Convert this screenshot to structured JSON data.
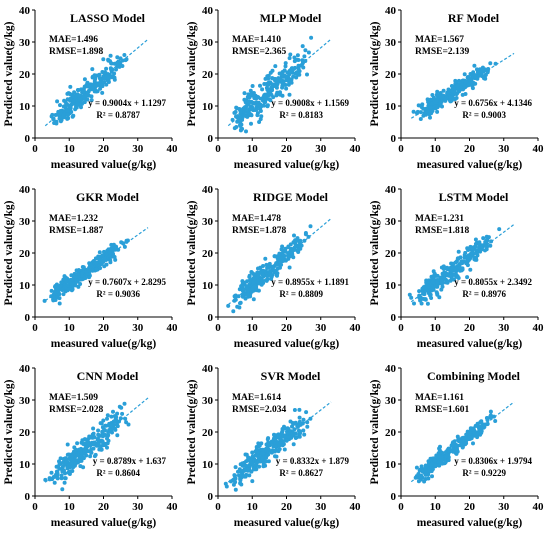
{
  "chart_data": [
    {
      "type": "scatter",
      "title": "LASSO Model",
      "xlabel": "measured value(g/kg)",
      "ylabel": "Predicted value(g/kg)",
      "xlim": [
        0,
        40
      ],
      "ylim": [
        0,
        40
      ],
      "xticks": [
        "0",
        "10",
        "20",
        "30",
        "40"
      ],
      "yticks": [
        "0",
        "10",
        "20",
        "30",
        "40"
      ],
      "mae": "MAE=1.496",
      "rmse": "RMSE=1.898",
      "equation": "y = 0.9004x + 1.1297",
      "r2": "R² = 0.8787",
      "slope": 0.9004,
      "intercept": 1.1297,
      "noise": 1.9,
      "x_range": [
        2,
        32
      ],
      "seed": 11,
      "n_points": 260,
      "point_color": "#2a9fd8"
    },
    {
      "type": "scatter",
      "title": "MLP Model",
      "xlabel": "measured value(g/kg)",
      "ylabel": "Predicted value(g/kg)",
      "xlim": [
        0,
        40
      ],
      "ylim": [
        0,
        40
      ],
      "xticks": [
        "0",
        "10",
        "20",
        "30",
        "40"
      ],
      "yticks": [
        "0",
        "10",
        "20",
        "30",
        "40"
      ],
      "mae": "MAE=1.410",
      "rmse": "RMSE=2.365",
      "equation": "y = 0.9008x + 1.1569",
      "r2": "R² = 0.8183",
      "slope": 0.9008,
      "intercept": 1.1569,
      "noise": 2.4,
      "x_range": [
        2,
        32
      ],
      "seed": 23,
      "n_points": 260,
      "point_color": "#2a9fd8"
    },
    {
      "type": "scatter",
      "title": "RF Model",
      "xlabel": "measured value(g/kg)",
      "ylabel": "Predicted value(g/kg)",
      "xlim": [
        0,
        40
      ],
      "ylim": [
        0,
        40
      ],
      "xticks": [
        "0",
        "10",
        "20",
        "30",
        "40"
      ],
      "yticks": [
        "0",
        "10",
        "20",
        "30",
        "40"
      ],
      "mae": "MAE=1.567",
      "rmse": "RMSE=2.139",
      "equation": "y = 0.6756x + 4.1346",
      "r2": "R² = 0.9003",
      "slope": 0.6756,
      "intercept": 4.1346,
      "noise": 1.3,
      "x_range": [
        2,
        32
      ],
      "seed": 37,
      "n_points": 260,
      "point_color": "#2a9fd8"
    },
    {
      "type": "scatter",
      "title": "GKR Model",
      "xlabel": "measured value(g/kg)",
      "ylabel": "Predicted value(g/kg)",
      "xlim": [
        0,
        40
      ],
      "ylim": [
        0,
        40
      ],
      "xticks": [
        "0",
        "10",
        "20",
        "30",
        "40"
      ],
      "yticks": [
        "0",
        "10",
        "20",
        "30",
        "40"
      ],
      "mae": "MAE=1.232",
      "rmse": "RMSE=1.887",
      "equation": "y = 0.7607x + 2.8295",
      "r2": "R² = 0.9036",
      "slope": 0.7607,
      "intercept": 2.8295,
      "noise": 1.4,
      "x_range": [
        2,
        32
      ],
      "seed": 41,
      "n_points": 260,
      "point_color": "#2a9fd8"
    },
    {
      "type": "scatter",
      "title": "RIDGE Model",
      "xlabel": "measured value(g/kg)",
      "ylabel": "Predicted value(g/kg)",
      "xlim": [
        0,
        40
      ],
      "ylim": [
        0,
        40
      ],
      "xticks": [
        "0",
        "10",
        "20",
        "30",
        "40"
      ],
      "yticks": [
        "0",
        "10",
        "20",
        "30",
        "40"
      ],
      "mae": "MAE=1.478",
      "rmse": "RMSE=1.878",
      "equation": "y = 0.8955x + 1.1891",
      "r2": "R² = 0.8809",
      "slope": 0.8955,
      "intercept": 1.1891,
      "noise": 1.9,
      "x_range": [
        2,
        32
      ],
      "seed": 53,
      "n_points": 260,
      "point_color": "#2a9fd8"
    },
    {
      "type": "scatter",
      "title": "LSTM Model",
      "xlabel": "measured value(g/kg)",
      "ylabel": "Predicted value(g/kg)",
      "xlim": [
        0,
        40
      ],
      "ylim": [
        0,
        40
      ],
      "xticks": [
        "0",
        "10",
        "20",
        "30",
        "40"
      ],
      "yticks": [
        "0",
        "10",
        "20",
        "30",
        "40"
      ],
      "mae": "MAE=1.231",
      "rmse": "RMSE=1.818",
      "equation": "y = 0.8055x + 2.3492",
      "r2": "R² = 0.8976",
      "slope": 0.8055,
      "intercept": 2.3492,
      "noise": 1.6,
      "x_range": [
        2,
        32
      ],
      "seed": 67,
      "n_points": 260,
      "point_color": "#2a9fd8"
    },
    {
      "type": "scatter",
      "title": "CNN Model",
      "xlabel": "measured value(g/kg)",
      "ylabel": "Predicted value(g/kg)",
      "xlim": [
        0,
        40
      ],
      "ylim": [
        0,
        40
      ],
      "xticks": [
        "0",
        "10",
        "20",
        "30",
        "40"
      ],
      "yticks": [
        "0",
        "10",
        "20",
        "30",
        "40"
      ],
      "mae": "MAE=1.509",
      "rmse": "RMSE=2.028",
      "equation": "y = 0.8789x + 1.637",
      "r2": "R² = 0.8604",
      "slope": 0.8789,
      "intercept": 1.637,
      "noise": 2.1,
      "x_range": [
        2,
        32
      ],
      "seed": 79,
      "n_points": 260,
      "point_color": "#2a9fd8"
    },
    {
      "type": "scatter",
      "title": "SVR Model",
      "xlabel": "measured value(g/kg)",
      "ylabel": "Predicted value(g/kg)",
      "xlim": [
        0,
        40
      ],
      "ylim": [
        0,
        40
      ],
      "xticks": [
        "0",
        "10",
        "20",
        "30",
        "40"
      ],
      "yticks": [
        "0",
        "10",
        "20",
        "30",
        "40"
      ],
      "mae": "MAE=1.614",
      "rmse": "RMSE=2.034",
      "equation": "y = 0.8332x + 1.879",
      "r2": "R² = 0.8627",
      "slope": 0.8332,
      "intercept": 1.879,
      "noise": 2.0,
      "x_range": [
        2,
        32
      ],
      "seed": 83,
      "n_points": 260,
      "point_color": "#2a9fd8"
    },
    {
      "type": "scatter",
      "title": "Combining Model",
      "xlabel": "measured value(g/kg)",
      "ylabel": "Predicted value(g/kg)",
      "xlim": [
        0,
        40
      ],
      "ylim": [
        0,
        40
      ],
      "xticks": [
        "0",
        "10",
        "20",
        "30",
        "40"
      ],
      "yticks": [
        "0",
        "10",
        "20",
        "30",
        "40"
      ],
      "mae": "MAE=1.161",
      "rmse": "RMSE=1.601",
      "equation": "y = 0.8306x + 1.9794",
      "r2": "R² = 0.9229",
      "slope": 0.8306,
      "intercept": 1.9794,
      "noise": 1.3,
      "x_range": [
        2,
        32
      ],
      "seed": 97,
      "n_points": 260,
      "point_color": "#2a9fd8"
    }
  ]
}
